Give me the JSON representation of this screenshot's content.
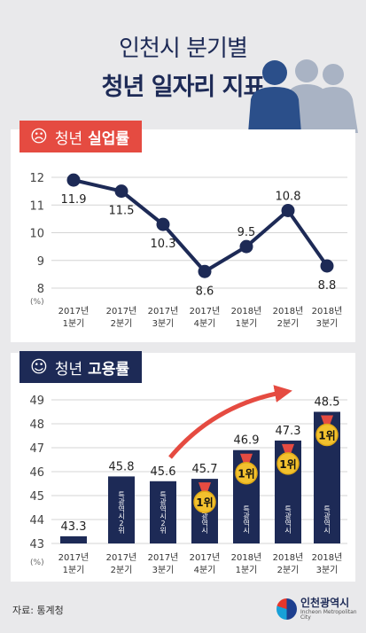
{
  "header": {
    "title_line1": "인천시 분기별",
    "title_line2": "청년 일자리 지표"
  },
  "colors": {
    "navy": "#1d2a56",
    "red": "#e54b41",
    "gold": "#f2c12e",
    "grid": "#d4d4d4"
  },
  "sections": {
    "unemployment": {
      "emoji": "☹",
      "prefix": "청년",
      "label": "실업률"
    },
    "employment": {
      "emoji": "☺",
      "prefix": "청년",
      "label": "고용률"
    }
  },
  "chart_data": [
    {
      "type": "line",
      "categories": [
        [
          "2017년",
          "1분기"
        ],
        [
          "2017년",
          "2분기"
        ],
        [
          "2017년",
          "3분기"
        ],
        [
          "2017년",
          "4분기"
        ],
        [
          "2018년",
          "1분기"
        ],
        [
          "2018년",
          "2분기"
        ],
        [
          "2018년",
          "3분기"
        ]
      ],
      "series": [
        {
          "values": [
            11.9,
            11.5,
            10.3,
            8.6,
            9.5,
            10.8,
            8.8
          ]
        }
      ],
      "value_labels": [
        "11.9",
        "11.5",
        "10.3",
        "8.6",
        "9.5",
        "10.8",
        "8.8"
      ],
      "ylim": [
        8,
        12
      ],
      "yticks": [
        "8",
        "9",
        "10",
        "11",
        "12"
      ],
      "yunit": "(%)",
      "grid": true
    },
    {
      "type": "bar",
      "categories": [
        [
          "2017년",
          "1분기"
        ],
        [
          "2017년",
          "2분기"
        ],
        [
          "2017년",
          "3분기"
        ],
        [
          "2017년",
          "4분기"
        ],
        [
          "2018년",
          "1분기"
        ],
        [
          "2018년",
          "2분기"
        ],
        [
          "2018년",
          "3분기"
        ]
      ],
      "series": [
        {
          "values": [
            43.3,
            45.8,
            45.6,
            45.7,
            46.9,
            47.3,
            48.5
          ]
        }
      ],
      "value_labels": [
        "43.3",
        "45.8",
        "45.6",
        "45.7",
        "46.9",
        "47.3",
        "48.5"
      ],
      "ylim": [
        43,
        49
      ],
      "yticks": [
        "43",
        "44",
        "45",
        "46",
        "47",
        "48",
        "49"
      ],
      "yunit": "(%)",
      "grid": true,
      "bar_inner_labels": [
        "",
        "특광역시 2위",
        "특광역시 2위",
        "특광역시",
        "특광역시",
        "특광역시",
        "특광역시"
      ],
      "medal_text": "1위",
      "medals": [
        false,
        false,
        false,
        true,
        true,
        true,
        true
      ]
    }
  ],
  "footer": {
    "source": "자료: 통계청",
    "logo_name": "인천광역시",
    "logo_en": "Incheon Metropolitan City"
  }
}
